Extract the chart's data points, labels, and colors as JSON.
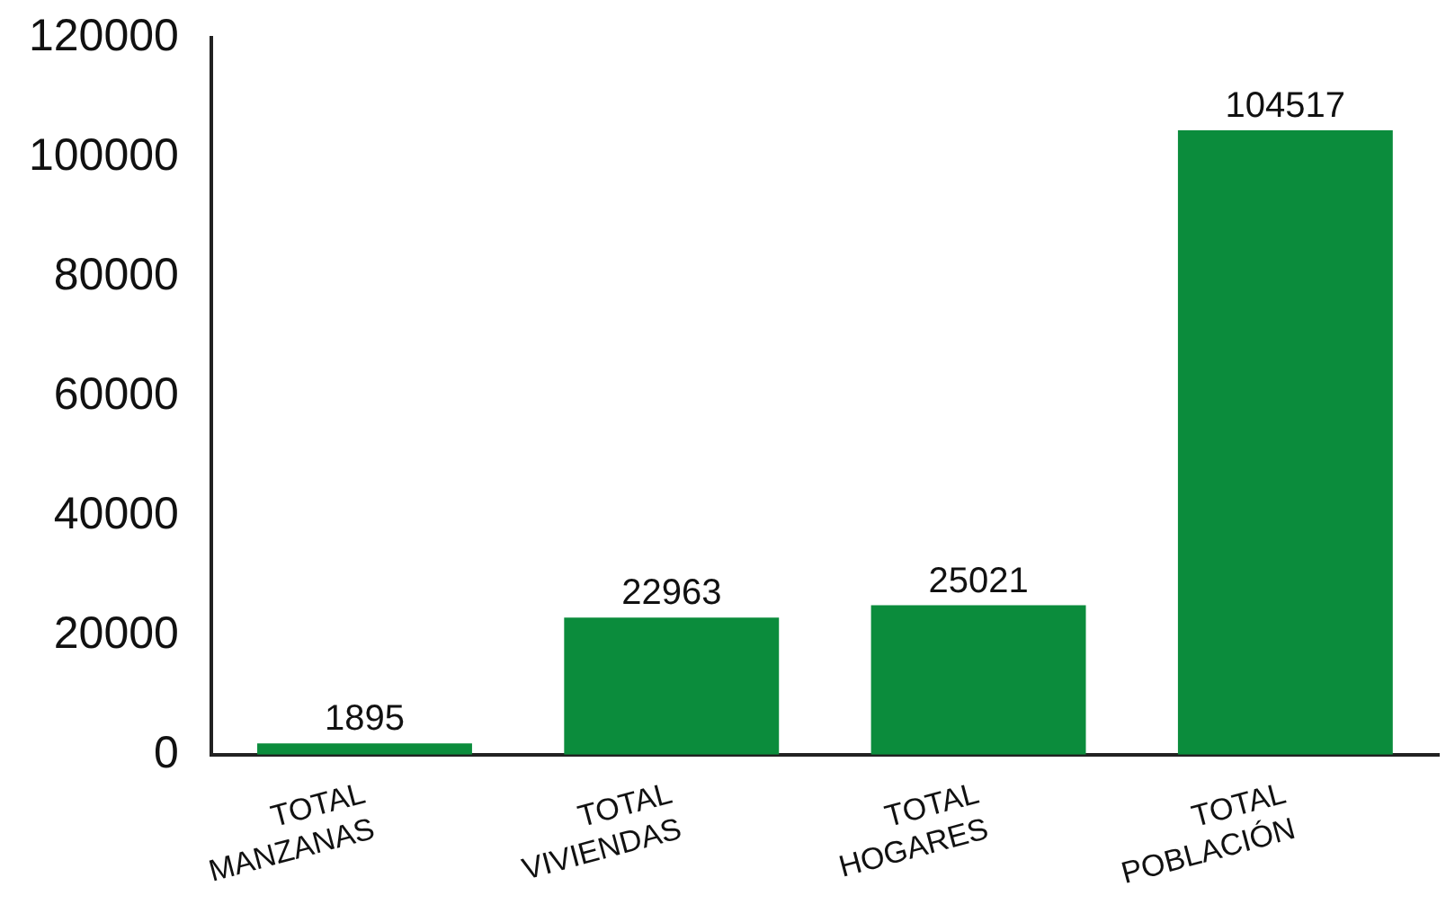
{
  "chart_data": {
    "type": "bar",
    "categories": [
      "TOTAL MANZANAS",
      "TOTAL VIVIENDAS",
      "TOTAL HOGARES",
      "TOTAL POBLACIÓN"
    ],
    "values": [
      1895,
      22963,
      25021,
      104517
    ],
    "color": "#0b8c3c",
    "ylim": [
      0,
      120000
    ],
    "yticks": [
      0,
      20000,
      40000,
      60000,
      80000,
      100000,
      120000
    ],
    "grid": false,
    "legend": false,
    "data_labels": true
  }
}
